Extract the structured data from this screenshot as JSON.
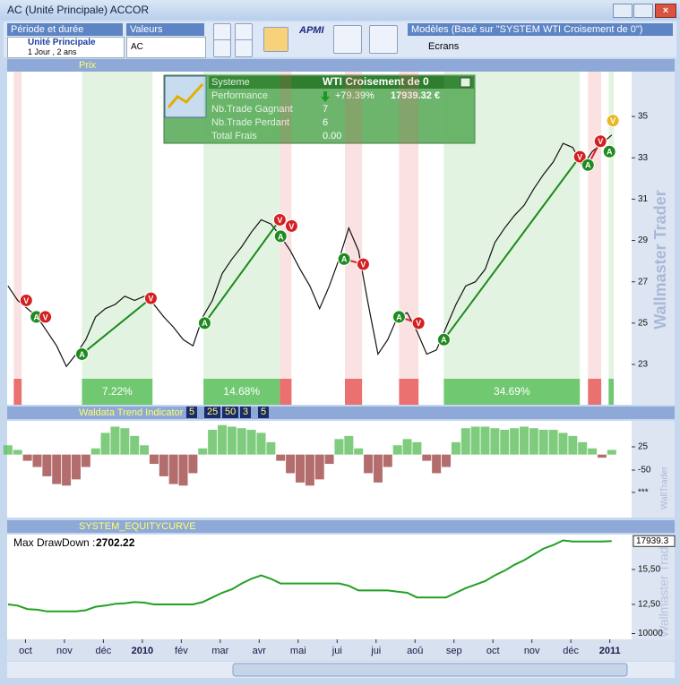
{
  "window": {
    "title": "AC (Unité Principale) ACCOR"
  },
  "toolbar": {
    "period_label": "Période et durée",
    "unit": "Unité Principale",
    "duration": "1 Jour , 2 ans",
    "values_label": "Valeurs",
    "symbol": "AC",
    "apmi": "APMI",
    "models_label": "Modèles (Basé sur \"SYSTEM WTI Croisement de 0\")",
    "screens": "Ecrans"
  },
  "panels": {
    "price": "Prix",
    "indicator": {
      "name": "Waldata Trend Indicator",
      "params": [
        5,
        25,
        50,
        3,
        5
      ]
    },
    "equity": "SYSTEM_EQUITYCURVE"
  },
  "system_box": {
    "label": "Systeme",
    "name": "WTI Croisement de 0",
    "rows": [
      [
        "Performance",
        "+79.39%",
        "17939.32 €"
      ],
      [
        "Nb.Trade Gagnant",
        "7"
      ],
      [
        "Nb.Trade Perdant",
        "6"
      ],
      [
        "Total Frais",
        "0.00"
      ]
    ]
  },
  "watermarks": [
    "Wallmaster Trader",
    "WallTrader",
    "Wallmaster Trader"
  ],
  "chart_data": [
    {
      "type": "line",
      "title": "Prix",
      "color": "#111111",
      "xlim": [
        -0.47,
        15.56
      ],
      "ylim": [
        21.05,
        37.17
      ],
      "yticks": [
        23,
        25,
        27,
        29,
        31,
        33,
        35
      ],
      "x": [
        -0.45,
        -0.2,
        0.05,
        0.3,
        0.55,
        0.8,
        1.05,
        1.3,
        1.55,
        1.8,
        2.05,
        2.3,
        2.55,
        2.8,
        3.05,
        3.3,
        3.55,
        3.8,
        4.05,
        4.3,
        4.55,
        4.8,
        5.05,
        5.3,
        5.55,
        5.8,
        6.05,
        6.3,
        6.55,
        6.8,
        7.05,
        7.3,
        7.55,
        7.8,
        8.05,
        8.3,
        8.55,
        8.8,
        9.05,
        9.3,
        9.55,
        9.8,
        10.05,
        10.3,
        10.55,
        10.8,
        11.05,
        11.3,
        11.55,
        11.8,
        12.05,
        12.3,
        12.55,
        12.8,
        13.05,
        13.3,
        13.55,
        13.8,
        14.05,
        14.3,
        14.55,
        14.8,
        15.05
      ],
      "values": [
        26.8,
        26.1,
        25.7,
        25.3,
        24.6,
        23.9,
        22.9,
        23.5,
        24.2,
        25.3,
        25.7,
        25.9,
        26.3,
        26.1,
        26.3,
        25.9,
        25.3,
        24.8,
        24.2,
        23.9,
        25.3,
        26.1,
        27.4,
        28.1,
        28.7,
        29.4,
        30.0,
        29.8,
        29.2,
        28.5,
        27.6,
        26.8,
        25.7,
        26.8,
        28.1,
        29.6,
        28.5,
        25.9,
        23.5,
        24.2,
        25.3,
        25.5,
        24.6,
        23.5,
        23.7,
        24.8,
        25.9,
        26.8,
        27.0,
        27.6,
        28.9,
        29.6,
        30.2,
        30.7,
        31.5,
        32.2,
        32.8,
        33.7,
        33.5,
        32.6,
        33.3,
        33.7,
        34.1
      ],
      "zones": [
        {
          "from": -0.3,
          "to": -0.1,
          "color": "#e85c5c"
        },
        {
          "from": 1.45,
          "to": 3.26,
          "color": "#5cbf5c",
          "label": "7.22%"
        },
        {
          "from": 4.57,
          "to": 6.53,
          "color": "#5cbf5c",
          "label": "14.68%"
        },
        {
          "from": 6.53,
          "to": 6.83,
          "color": "#e85c5c"
        },
        {
          "from": 8.2,
          "to": 8.64,
          "color": "#e85c5c"
        },
        {
          "from": 9.59,
          "to": 10.09,
          "color": "#e85c5c"
        },
        {
          "from": 10.74,
          "to": 14.23,
          "color": "#5cbf5c",
          "label": "34.69%"
        },
        {
          "from": 14.44,
          "to": 14.78,
          "color": "#e85c5c"
        },
        {
          "from": 14.97,
          "to": 15.1,
          "color": "#5cbf5c"
        }
      ],
      "trades": [
        {
          "x": [
            1.45,
            3.22
          ],
          "y": [
            23.5,
            26.2
          ],
          "color": "#1a8a1a"
        },
        {
          "x": [
            4.6,
            6.53
          ],
          "y": [
            25.0,
            30.0
          ],
          "color": "#1a8a1a"
        },
        {
          "x": [
            8.18,
            8.67
          ],
          "y": [
            28.1,
            27.85
          ],
          "color": "#e02020"
        },
        {
          "x": [
            9.59,
            10.09
          ],
          "y": [
            25.3,
            25.0
          ],
          "color": "#e02020"
        },
        {
          "x": [
            10.74,
            14.23
          ],
          "y": [
            24.2,
            33.05
          ],
          "color": "#1a8a1a"
        },
        {
          "x": [
            14.44,
            14.76
          ],
          "y": [
            32.65,
            33.8
          ],
          "color": "#e02020"
        }
      ],
      "signals": [
        {
          "label": "V",
          "x": 0.02,
          "y": 26.1,
          "color": "#d42020"
        },
        {
          "label": "A",
          "x": 0.28,
          "y": 25.3,
          "color": "#1f8a1f"
        },
        {
          "label": "V",
          "x": 0.51,
          "y": 25.3,
          "color": "#d42020"
        },
        {
          "label": "A",
          "x": 1.45,
          "y": 23.5,
          "color": "#1f8a1f"
        },
        {
          "label": "V",
          "x": 3.22,
          "y": 26.2,
          "color": "#d42020"
        },
        {
          "label": "A",
          "x": 4.6,
          "y": 25.0,
          "color": "#1f8a1f"
        },
        {
          "label": "V",
          "x": 6.53,
          "y": 30.0,
          "color": "#d42020"
        },
        {
          "label": "A",
          "x": 6.55,
          "y": 29.2,
          "color": "#1f8a1f"
        },
        {
          "label": "V",
          "x": 6.83,
          "y": 29.7,
          "color": "#d42020"
        },
        {
          "label": "A",
          "x": 8.18,
          "y": 28.1,
          "color": "#1f8a1f"
        },
        {
          "label": "V",
          "x": 8.67,
          "y": 27.85,
          "color": "#d42020"
        },
        {
          "label": "A",
          "x": 9.59,
          "y": 25.3,
          "color": "#1f8a1f"
        },
        {
          "label": "V",
          "x": 10.09,
          "y": 25.0,
          "color": "#d42020"
        },
        {
          "label": "A",
          "x": 10.74,
          "y": 24.2,
          "color": "#1f8a1f"
        },
        {
          "label": "V",
          "x": 14.23,
          "y": 33.05,
          "color": "#d42020"
        },
        {
          "label": "A",
          "x": 14.44,
          "y": 32.65,
          "color": "#1f8a1f"
        },
        {
          "label": "V",
          "x": 14.76,
          "y": 33.8,
          "color": "#d42020"
        },
        {
          "label": "A",
          "x": 14.99,
          "y": 33.3,
          "color": "#1f8a1f"
        },
        {
          "label": "V",
          "x": 15.08,
          "y": 34.8,
          "color": "#e8b820"
        }
      ]
    },
    {
      "type": "bar",
      "title": "Waldata Trend Indicator",
      "color": "#5fbf5f",
      "negative_color": "#a04848",
      "xlim": [
        -0.47,
        15.56
      ],
      "ylim": [
        -203,
        108.7
      ],
      "yticks": [
        25,
        -50,
        {
          "value": -122,
          "label": "***"
        }
      ],
      "values": [
        30,
        15,
        -20,
        -40,
        -70,
        -95,
        -100,
        -80,
        -40,
        20,
        70,
        90,
        85,
        60,
        30,
        -30,
        -70,
        -95,
        -100,
        -60,
        20,
        80,
        95,
        90,
        85,
        80,
        70,
        40,
        -20,
        -60,
        -90,
        -100,
        -80,
        -30,
        50,
        60,
        20,
        -60,
        -90,
        -40,
        30,
        50,
        40,
        -20,
        -60,
        -40,
        40,
        85,
        90,
        90,
        85,
        80,
        85,
        90,
        85,
        80,
        80,
        70,
        60,
        40,
        20,
        -10,
        15
      ]
    },
    {
      "type": "line",
      "title": "SYSTEM_EQUITYCURVE",
      "color": "#22a022",
      "xlim": [
        -0.47,
        15.56
      ],
      "ylim": [
        9500,
        18500
      ],
      "yticks": [
        {
          "value": 15500,
          "label": "15,50"
        },
        {
          "value": 12500,
          "label": "12,50"
        },
        10000
      ],
      "current_value": 17939.3,
      "annotation_label": "Max DrawDown :",
      "max_drawdown": 2702.22,
      "values": [
        12500,
        12400,
        12100,
        12050,
        11900,
        11900,
        11900,
        11900,
        12000,
        12300,
        12400,
        12550,
        12600,
        12700,
        12650,
        12500,
        12500,
        12500,
        12500,
        12500,
        12700,
        13100,
        13500,
        13800,
        14300,
        14700,
        15000,
        14700,
        14300,
        14300,
        14300,
        14300,
        14300,
        14300,
        14300,
        14100,
        13700,
        13700,
        13700,
        13700,
        13600,
        13500,
        13100,
        13100,
        13100,
        13100,
        13500,
        13900,
        14200,
        14500,
        15000,
        15400,
        15900,
        16300,
        16800,
        17300,
        17600,
        18000,
        17900,
        17900,
        17900,
        17900,
        17939.3
      ],
      "xticks": [
        {
          "value": 0,
          "label": "oct"
        },
        {
          "value": 1,
          "label": "nov"
        },
        {
          "value": 2,
          "label": "déc"
        },
        {
          "value": 3,
          "label": "2010"
        },
        {
          "value": 4,
          "label": "fév"
        },
        {
          "value": 5,
          "label": "mar"
        },
        {
          "value": 6,
          "label": "avr"
        },
        {
          "value": 7,
          "label": "mai"
        },
        {
          "value": 8,
          "label": "jui"
        },
        {
          "value": 9,
          "label": "jui"
        },
        {
          "value": 10,
          "label": "aoû"
        },
        {
          "value": 11,
          "label": "sep"
        },
        {
          "value": 12,
          "label": "oct"
        },
        {
          "value": 13,
          "label": "nov"
        },
        {
          "value": 14,
          "label": "déc"
        },
        {
          "value": 15,
          "label": "2011"
        }
      ]
    }
  ]
}
